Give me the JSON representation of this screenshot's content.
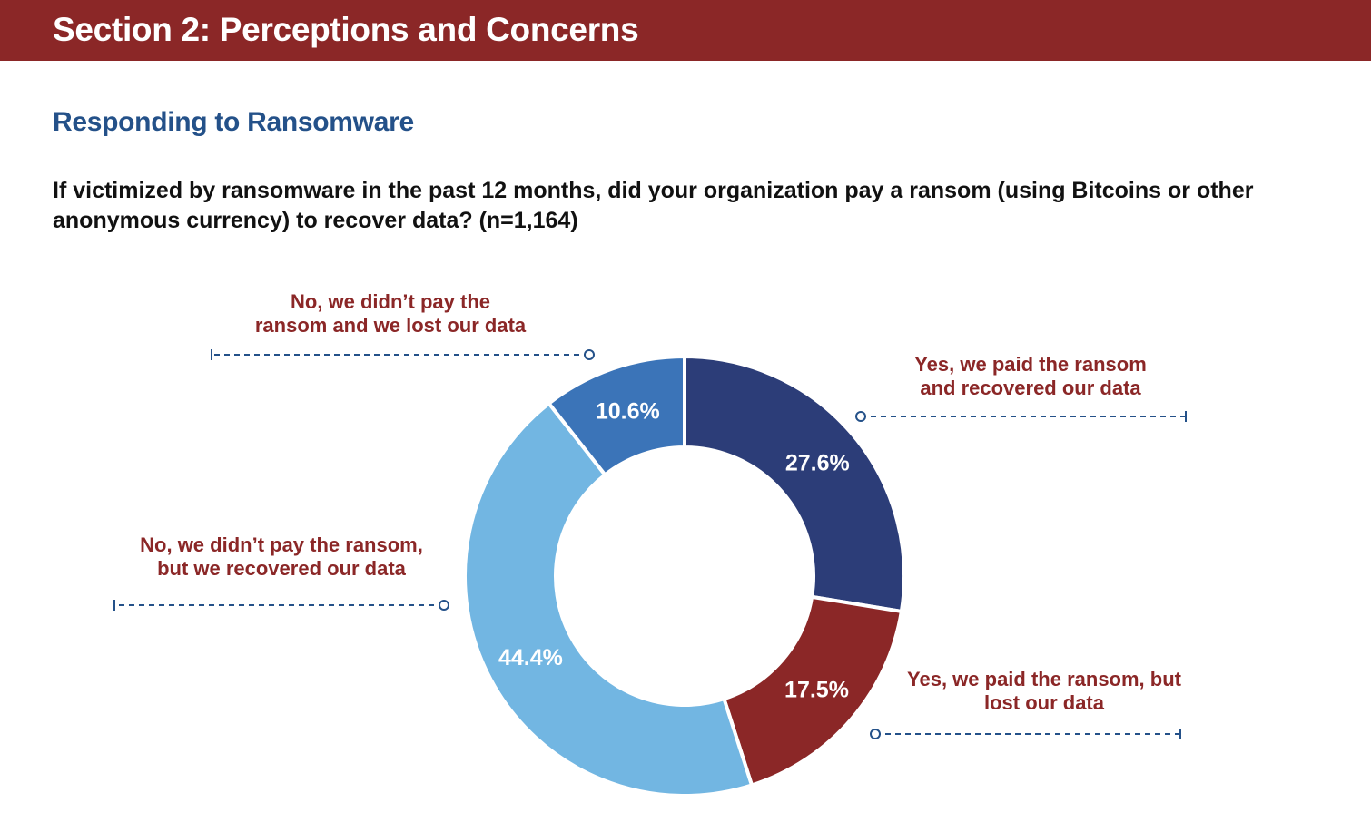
{
  "header": {
    "title": "Section 2: Perceptions and Concerns"
  },
  "section": {
    "subtitle": "Responding to Ransomware"
  },
  "question": {
    "text": "If victimized by ransomware in the past 12 months, did your organization pay a ransom (using Bitcoins or other anonymous currency) to recover data? (n=1,164)"
  },
  "chart_data": {
    "type": "pie",
    "donut": true,
    "title": "",
    "slices": [
      {
        "label_lines": [
          "Yes, we paid the ransom",
          "and recovered our data"
        ],
        "value": 27.6,
        "value_label": "27.6%",
        "color": "#2c3d78"
      },
      {
        "label_lines": [
          "Yes, we paid the ransom, but",
          "lost our data"
        ],
        "value": 17.5,
        "value_label": "17.5%",
        "color": "#8b2727"
      },
      {
        "label_lines": [
          "No, we didn’t pay the ransom,",
          "but we recovered our data"
        ],
        "value": 44.4,
        "value_label": "44.4%",
        "color": "#72b6e2"
      },
      {
        "label_lines": [
          "No, we didn’t pay the",
          "ransom and we lost our data"
        ],
        "value": 10.6,
        "value_label": "10.6%",
        "color": "#3b74b8"
      }
    ],
    "label_color": "#8b2727",
    "leader_color": "#245189"
  }
}
